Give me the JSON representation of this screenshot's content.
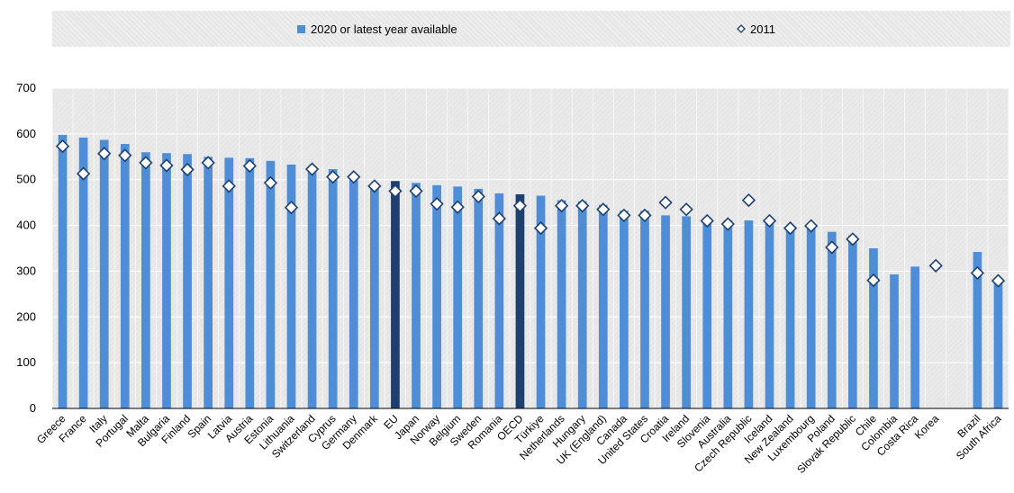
{
  "legend": {
    "bar_label": "2020 or latest year available",
    "marker_label": "2011"
  },
  "colors": {
    "bar": "#4f8ed6",
    "bar_highlight": "#1f3f6e",
    "marker_fill": "#ffffff",
    "marker_stroke": "#1f3f6e",
    "plot_background": "#e6e6e6"
  },
  "chart_data": {
    "type": "bar",
    "ylim": [
      0,
      700
    ],
    "yticks": [
      0,
      100,
      200,
      300,
      400,
      500,
      600,
      700
    ],
    "grid": true,
    "legend_position": "top",
    "categories": [
      "Greece",
      "France",
      "Italy",
      "Portugal",
      "Malta",
      "Bulgaria",
      "Finland",
      "Spain",
      "Latvia",
      "Austria",
      "Estonia",
      "Lithuania",
      "Switzerland",
      "Cyprus",
      "Germany",
      "Denmark",
      "EU",
      "Japan",
      "Norway",
      "Belgium",
      "Sweden",
      "Romania",
      "OECD",
      "Türkiye",
      "Netherlands",
      "Hungary",
      "UK (England)",
      "Canada",
      "United States",
      "Croatia",
      "Ireland",
      "Slovenia",
      "Australia",
      "Czech Republic",
      "Iceland",
      "New Zealand",
      "Luxembourg",
      "Poland",
      "Slovak Republic",
      "Chile",
      "Colombia",
      "Costa Rica",
      "Korea",
      "",
      "Brazil",
      "South Africa"
    ],
    "highlighted": [
      "EU",
      "OECD"
    ],
    "series": [
      {
        "name": "2020 or latest year available",
        "values": [
          598,
          592,
          587,
          578,
          560,
          558,
          556,
          550,
          548,
          547,
          541,
          533,
          525,
          523,
          510,
          492,
          497,
          493,
          488,
          485,
          480,
          470,
          468,
          465,
          455,
          453,
          445,
          432,
          432,
          422,
          420,
          417,
          411,
          411,
          410,
          400,
          400,
          386,
          378,
          350,
          293,
          310,
          null,
          null,
          342,
          276
        ]
      },
      {
        "name": "2011",
        "values": [
          573,
          513,
          557,
          553,
          537,
          531,
          522,
          537,
          486,
          530,
          493,
          439,
          523,
          506,
          506,
          486,
          475,
          475,
          447,
          440,
          463,
          415,
          443,
          394,
          443,
          443,
          435,
          422,
          422,
          450,
          435,
          410,
          403,
          455,
          410,
          394,
          399,
          352,
          370,
          280,
          null,
          null,
          312,
          null,
          296,
          279
        ]
      }
    ]
  }
}
